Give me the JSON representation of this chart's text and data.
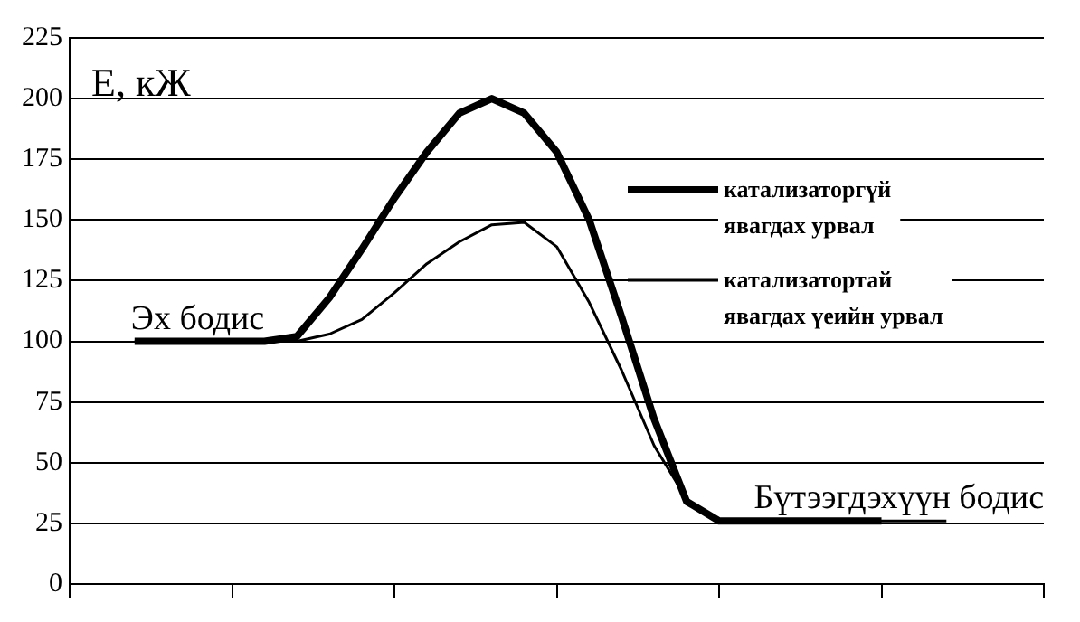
{
  "chart_data": {
    "type": "line",
    "ylabel": "E, кЖ",
    "categories": [
      null,
      null,
      null,
      null,
      null,
      null,
      null,
      null,
      null,
      null,
      null,
      null,
      null,
      null,
      null,
      null,
      null,
      null,
      null,
      null,
      null,
      null,
      null,
      null,
      null,
      null,
      null,
      null,
      null,
      null,
      null
    ],
    "ylim": [
      0,
      225
    ],
    "yticks": [
      0,
      25,
      50,
      75,
      100,
      125,
      150,
      175,
      200,
      225
    ],
    "tick_labels": "y",
    "grid": "y",
    "legend": "right",
    "marker": "none",
    "line_style": "solid",
    "series": [
      {
        "name": "катализаторгүй явагдах урвал",
        "color": "#000000",
        "values": [
          null,
          null,
          100,
          100,
          100,
          100,
          100,
          102,
          118,
          138,
          159,
          178,
          194,
          200,
          194,
          178,
          150,
          110,
          68,
          34,
          26,
          26,
          26,
          26,
          26,
          26,
          null,
          null,
          null,
          null,
          null
        ]
      },
      {
        "name": "катализатортай явагдах үеийн урвал",
        "color": "#000000",
        "values": [
          null,
          null,
          100,
          100,
          100,
          100,
          100,
          100,
          103,
          109,
          120,
          132,
          141,
          148,
          149,
          139,
          116,
          88,
          57,
          35,
          26,
          26,
          26,
          26,
          26,
          26,
          26,
          26,
          null,
          null,
          null
        ]
      }
    ],
    "annotations": [
      {
        "text": "Эх бодис",
        "y": 100
      },
      {
        "text": "Бүтээгдэхүүн бодис",
        "y": 26
      }
    ]
  }
}
